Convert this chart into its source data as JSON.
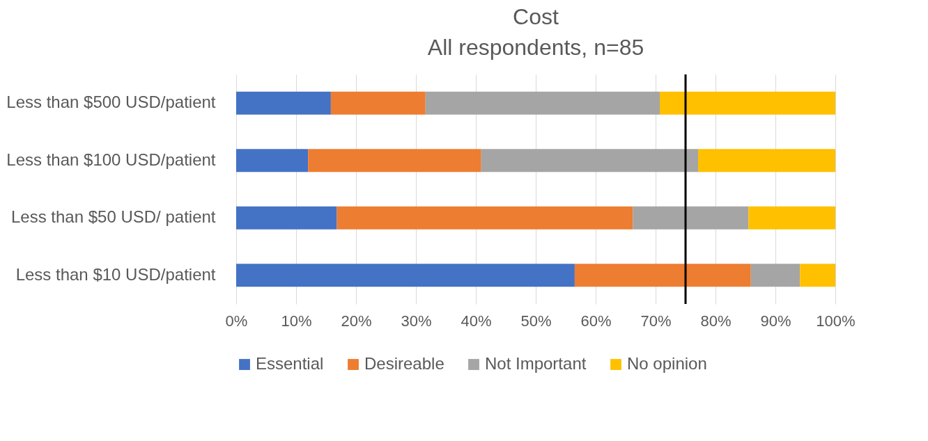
{
  "chart_data": {
    "type": "bar",
    "orientation": "horizontal",
    "stacked": true,
    "title": "Cost",
    "subtitle": "All respondents, n=85",
    "categories": [
      "Less than $500 USD/patient",
      "Less than $100 USD/patient",
      "Less than $50 USD/ patient",
      "Less than $10 USD/patient"
    ],
    "series": [
      {
        "name": "Essential",
        "color": "#4472c4",
        "values": [
          15.8,
          12.0,
          16.8,
          56.5
        ]
      },
      {
        "name": "Desireable",
        "color": "#ed7d31",
        "values": [
          15.8,
          28.9,
          49.4,
          29.4
        ]
      },
      {
        "name": "Not Important",
        "color": "#a5a5a5",
        "values": [
          39.1,
          36.2,
          19.3,
          8.2
        ]
      },
      {
        "name": "No opinion",
        "color": "#ffc000",
        "values": [
          29.3,
          22.9,
          14.5,
          5.9
        ]
      }
    ],
    "xlim": [
      0,
      100
    ],
    "xticks": [
      {
        "value": 0,
        "label": "0%"
      },
      {
        "value": 10,
        "label": "10%"
      },
      {
        "value": 20,
        "label": "20%"
      },
      {
        "value": 30,
        "label": "30%"
      },
      {
        "value": 40,
        "label": "40%"
      },
      {
        "value": 50,
        "label": "50%"
      },
      {
        "value": 60,
        "label": "60%"
      },
      {
        "value": 70,
        "label": "70%"
      },
      {
        "value": 80,
        "label": "80%"
      },
      {
        "value": 90,
        "label": "90%"
      },
      {
        "value": 100,
        "label": "100%"
      }
    ],
    "ref_lines": [
      {
        "axis": "x",
        "value": 75,
        "color": "#000000"
      }
    ],
    "grid": "x",
    "legend": "bottom"
  }
}
